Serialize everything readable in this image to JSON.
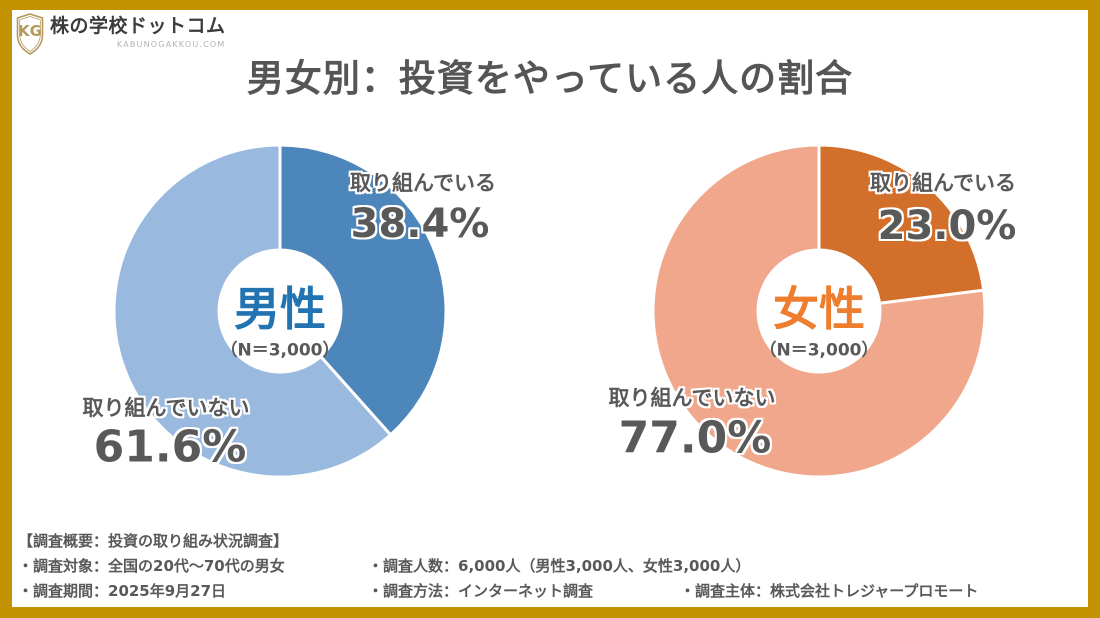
{
  "brand": {
    "name": "株の学校ドットコム",
    "domain_caption": "KABUNOGAKKOU.COM",
    "monogram": "KG"
  },
  "title": "男女別：投資をやっている人の割合",
  "chart_data": [
    {
      "type": "pie",
      "style": "donut",
      "group": "男性",
      "n_label": "（N＝3,000）",
      "categories": [
        "取り組んでいる",
        "取り組んでいない"
      ],
      "values": [
        38.4,
        61.6
      ],
      "value_labels": [
        "38.4%",
        "61.6%"
      ],
      "colors": [
        "#4D86BA",
        "#99B9DF"
      ],
      "center_color": "#2173B1",
      "start_angle": 0,
      "direction": "clockwise"
    },
    {
      "type": "pie",
      "style": "donut",
      "group": "女性",
      "n_label": "（N＝3,000）",
      "categories": [
        "取り組んでいる",
        "取り組んでいない"
      ],
      "values": [
        23.0,
        77.0
      ],
      "value_labels": [
        "23.0%",
        "77.0%"
      ],
      "colors": [
        "#D2702B",
        "#F1A78B"
      ],
      "center_color": "#EE7D2E",
      "start_angle": 0,
      "direction": "clockwise"
    }
  ],
  "footer": {
    "heading": "【調査概要：投資の取り組み状況調査】",
    "target": "・調査対象：全国の20代～70代の男女",
    "sample": "・調査人数：6,000人（男性3,000人、女性3,000人）",
    "period": "・調査期間：2025年9月27日",
    "method": "・調査方法：インターネット調査",
    "organizer": "・調査主体：株式会社トレジャープロモート"
  },
  "colors": {
    "frame_gold": "#C29203",
    "logo_gold": "#B5995C",
    "label_gray": "#595959"
  }
}
